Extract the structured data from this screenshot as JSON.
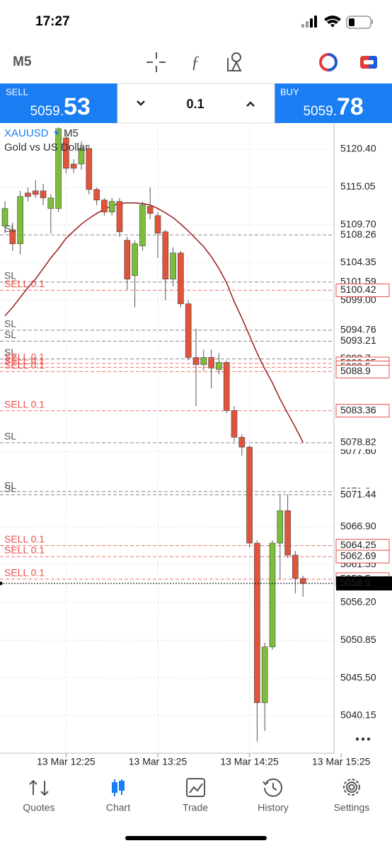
{
  "status": {
    "time": "17:27"
  },
  "toolbar": {
    "timeframe": "M5"
  },
  "trade_bar": {
    "sell": {
      "label": "SELL",
      "price_prefix": "5059.",
      "price_suffix": "53"
    },
    "lot": "0.1",
    "buy": {
      "label": "BUY",
      "price_prefix": "5059.",
      "price_suffix": "78"
    }
  },
  "chart": {
    "symbol": "XAUUSD",
    "timeframe": "M5",
    "description": "Gold vs US Dollar",
    "yticks": [
      {
        "value": 5120.4,
        "label": "5120.40"
      },
      {
        "value": 5115.05,
        "label": "5115.05"
      },
      {
        "value": 5109.7,
        "label": "5109.70"
      },
      {
        "value": 5104.35,
        "label": "5104.35"
      },
      {
        "value": 5099.0,
        "label": "5099.00"
      },
      {
        "value": 5077.6,
        "label": "5077.60"
      },
      {
        "value": 5066.9,
        "label": "5066.90"
      },
      {
        "value": 5061.55,
        "label": "5061.55"
      },
      {
        "value": 5056.2,
        "label": "5056.20"
      },
      {
        "value": 5050.85,
        "label": "5050.85"
      },
      {
        "value": 5045.5,
        "label": "5045.50"
      },
      {
        "value": 5040.15,
        "label": "5040.15"
      }
    ],
    "xlabels": [
      "13 Mar 12:25",
      "13 Mar 13:25",
      "13 Mar 14:25",
      "13 Mar 15:25"
    ],
    "candles": [
      {
        "open": 5109.5,
        "high": 5113.0,
        "low": 5108.5,
        "close": 5112.0
      },
      {
        "open": 5109.0,
        "high": 5110.0,
        "low": 5106.0,
        "close": 5107.0
      },
      {
        "open": 5107.0,
        "high": 5114.5,
        "low": 5105.5,
        "close": 5113.7
      },
      {
        "open": 5114.2,
        "high": 5115.0,
        "low": 5113.0,
        "close": 5113.7
      },
      {
        "open": 5114.5,
        "high": 5116.0,
        "low": 5113.5,
        "close": 5114.0
      },
      {
        "open": 5114.5,
        "high": 5115.5,
        "low": 5112.5,
        "close": 5113.5
      },
      {
        "open": 5112.0,
        "high": 5114.0,
        "low": 5108.5,
        "close": 5113.5
      },
      {
        "open": 5112.0,
        "high": 5123.5,
        "low": 5111.5,
        "close": 5123.3
      },
      {
        "open": 5122.0,
        "high": 5122.5,
        "low": 5117.0,
        "close": 5117.7
      },
      {
        "open": 5118.3,
        "high": 5119.0,
        "low": 5117.0,
        "close": 5117.7
      },
      {
        "open": 5118.3,
        "high": 5121.5,
        "low": 5117.5,
        "close": 5120.5
      },
      {
        "open": 5120.5,
        "high": 5121.0,
        "low": 5114.0,
        "close": 5114.7
      },
      {
        "open": 5114.7,
        "high": 5115.0,
        "low": 5112.5,
        "close": 5113.2
      },
      {
        "open": 5113.2,
        "high": 5113.5,
        "low": 5111.0,
        "close": 5111.5
      },
      {
        "open": 5111.5,
        "high": 5113.5,
        "low": 5111.0,
        "close": 5113.0
      },
      {
        "open": 5113.0,
        "high": 5113.5,
        "low": 5108.0,
        "close": 5108.7
      },
      {
        "open": 5107.5,
        "high": 5108.0,
        "low": 5100.5,
        "close": 5102.0
      },
      {
        "open": 5102.5,
        "high": 5107.5,
        "low": 5098.0,
        "close": 5107.0
      },
      {
        "open": 5106.7,
        "high": 5113.0,
        "low": 5106.0,
        "close": 5112.5
      },
      {
        "open": 5112.3,
        "high": 5115.0,
        "low": 5110.5,
        "close": 5111.3
      },
      {
        "open": 5111.0,
        "high": 5111.5,
        "low": 5105.0,
        "close": 5108.5
      },
      {
        "open": 5108.7,
        "high": 5109.0,
        "low": 5099.0,
        "close": 5102.0
      },
      {
        "open": 5102.0,
        "high": 5106.5,
        "low": 5101.0,
        "close": 5105.7
      },
      {
        "open": 5105.7,
        "high": 5106.0,
        "low": 5098.0,
        "close": 5098.5
      },
      {
        "open": 5098.5,
        "high": 5099.0,
        "low": 5090.5,
        "close": 5090.9
      },
      {
        "open": 5090.9,
        "high": 5095.0,
        "low": 5084.0,
        "close": 5089.9
      },
      {
        "open": 5089.9,
        "high": 5092.0,
        "low": 5089.0,
        "close": 5090.9
      },
      {
        "open": 5090.9,
        "high": 5092.0,
        "low": 5086.5,
        "close": 5089.4
      },
      {
        "open": 5089.2,
        "high": 5091.5,
        "low": 5088.5,
        "close": 5090.2
      },
      {
        "open": 5090.2,
        "high": 5090.5,
        "low": 5083.0,
        "close": 5083.4
      },
      {
        "open": 5083.4,
        "high": 5084.0,
        "low": 5079.0,
        "close": 5079.6
      },
      {
        "open": 5079.6,
        "high": 5080.0,
        "low": 5077.0,
        "close": 5078.2
      },
      {
        "open": 5078.2,
        "high": 5078.5,
        "low": 5064.0,
        "close": 5064.6
      },
      {
        "open": 5064.6,
        "high": 5065.0,
        "low": 5036.5,
        "close": 5042.0
      },
      {
        "open": 5042.0,
        "high": 5050.5,
        "low": 5038.0,
        "close": 5049.9
      },
      {
        "open": 5049.9,
        "high": 5065.0,
        "low": 5049.5,
        "close": 5064.6
      },
      {
        "open": 5064.6,
        "high": 5071.5,
        "low": 5059.5,
        "close": 5069.2
      },
      {
        "open": 5069.2,
        "high": 5071.5,
        "low": 5062.5,
        "close": 5062.9
      },
      {
        "open": 5062.9,
        "high": 5063.5,
        "low": 5057.5,
        "close": 5059.6
      },
      {
        "open": 5059.6,
        "high": 5060.0,
        "low": 5057.0,
        "close": 5058.9
      }
    ],
    "moving_average": {
      "color": "#9b1c1c",
      "values": [
        5096.8,
        5098.0,
        5099.4,
        5100.8,
        5102.0,
        5103.5,
        5105.0,
        5106.3,
        5107.8,
        5108.8,
        5109.8,
        5110.6,
        5111.3,
        5111.9,
        5112.4,
        5112.7,
        5112.8,
        5112.8,
        5112.7,
        5112.5,
        5112.0,
        5111.4,
        5110.7,
        5109.8,
        5108.8,
        5107.7,
        5106.6,
        5105.2,
        5103.5,
        5101.5,
        5098.8,
        5096.5,
        5094.0,
        5091.5,
        5089.3,
        5087.3,
        5085.0,
        5083.0,
        5081.0,
        5078.9
      ]
    },
    "levels": [
      {
        "label": "SL",
        "price": 5108.26
      },
      {
        "label": "SL",
        "price": 5101.59
      },
      {
        "label": "SELL 0.1",
        "price": 5100.42
      },
      {
        "label": "SL",
        "price": 5094.76
      },
      {
        "label": "SL",
        "price": 5093.21
      },
      {
        "label": "SL",
        "price": 5090.7
      },
      {
        "label": "SELL 0.1",
        "price": 5090.05
      },
      {
        "label": "SELL 0.1",
        "price": 5089.5
      },
      {
        "label": "SELL 0.1",
        "price": 5088.9
      },
      {
        "label": "SELL 0.1",
        "price": 5083.36
      },
      {
        "label": "SL",
        "price": 5078.82
      },
      {
        "label": "SL",
        "price": 5071.9
      },
      {
        "label": "SL",
        "price": 5071.44
      },
      {
        "label": "SELL 0.1",
        "price": 5064.25
      },
      {
        "label": "SELL 0.1",
        "price": 5062.69
      },
      {
        "label": "SELL 0.1",
        "price": 5059.5
      }
    ],
    "current_price": 5058.9
  },
  "tabs": [
    "Quotes",
    "Chart",
    "Trade",
    "History",
    "Settings"
  ]
}
